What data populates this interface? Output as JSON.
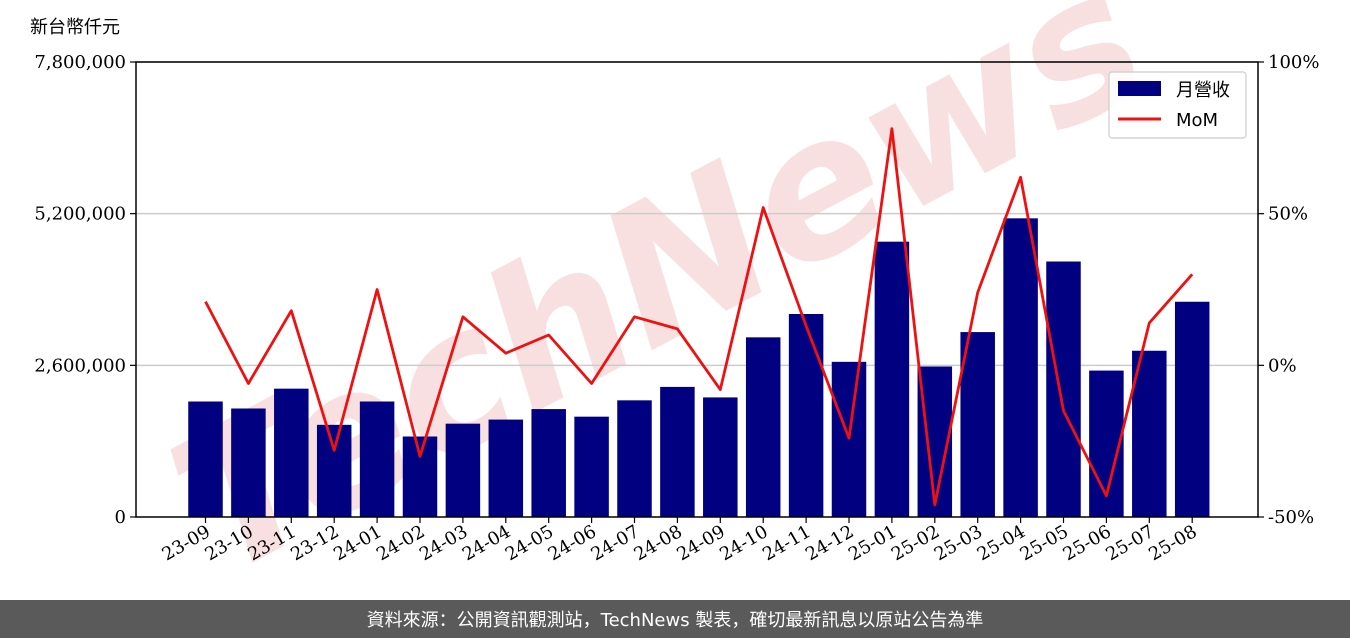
{
  "unit_label": "新台幣仟元",
  "watermark": "TechNews",
  "footer": "資料來源：公開資訊觀測站，TechNews 製表，確切最新訊息以原站公告為準",
  "colors": {
    "bar": "#000080",
    "line": "#ee1111",
    "watermark": "#f3c6c6",
    "footer_bg": "#5a5a5a"
  },
  "chart_data": {
    "type": "bar",
    "categories": [
      "23-09",
      "23-10",
      "23-11",
      "23-12",
      "24-01",
      "24-02",
      "24-03",
      "24-04",
      "24-05",
      "24-06",
      "24-07",
      "24-08",
      "24-09",
      "24-10",
      "24-11",
      "24-12",
      "25-01",
      "25-02",
      "25-03",
      "25-04",
      "25-05",
      "25-06",
      "25-07",
      "25-08"
    ],
    "series": [
      {
        "name": "月營收",
        "type": "bar",
        "axis": "left",
        "values": [
          1980000,
          1860000,
          2200000,
          1580000,
          1980000,
          1380000,
          1600000,
          1670000,
          1850000,
          1720000,
          2000000,
          2230000,
          2050000,
          3080000,
          3480000,
          2660000,
          4720000,
          2580000,
          3170000,
          5120000,
          4380000,
          2510000,
          2850000,
          3690000
        ]
      },
      {
        "name": "MoM",
        "type": "line",
        "axis": "right",
        "values": [
          21,
          -6,
          18,
          -28,
          25,
          -30,
          16,
          4,
          10,
          -6,
          16,
          12,
          -8,
          52,
          13,
          -24,
          78,
          -46,
          24,
          62,
          -15,
          -43,
          14,
          30
        ]
      }
    ],
    "ylim_left": [
      0,
      7800000
    ],
    "yticks_left": [
      "0",
      "2,600,000",
      "5,200,000",
      "7,800,000"
    ],
    "ylim_right": [
      -50,
      100
    ],
    "yticks_right": [
      "-50%",
      "0%",
      "50%",
      "100%"
    ],
    "grid": "horizontal",
    "legend": "top-right"
  }
}
